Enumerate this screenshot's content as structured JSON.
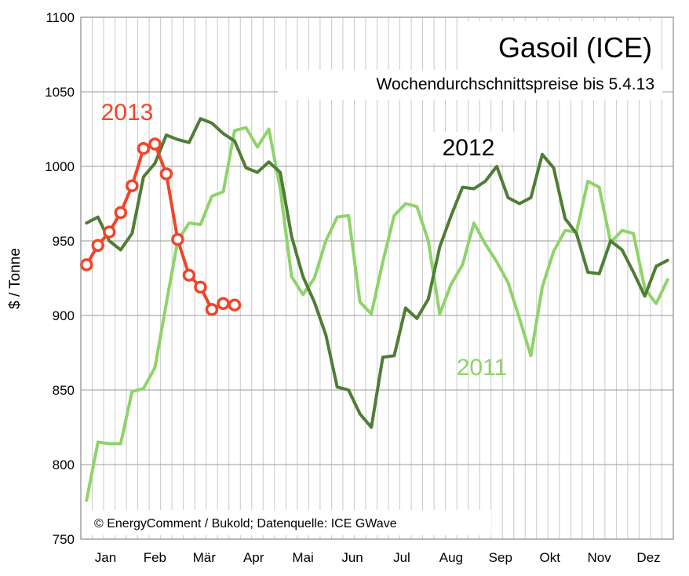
{
  "chart_data": {
    "type": "line",
    "title": "Gasoil (ICE)",
    "subtitle": "Wochendurchschnittspreise bis 5.4.13",
    "ylabel": "$ / Tonne",
    "xlabel": "",
    "ylim": [
      750,
      1100
    ],
    "yticks": [
      750,
      800,
      850,
      900,
      950,
      1000,
      1050,
      1100
    ],
    "categories": [
      "Jan",
      "Feb",
      "Mär",
      "Apr",
      "Mai",
      "Jun",
      "Jul",
      "Aug",
      "Sep",
      "Okt",
      "Nov",
      "Dez"
    ],
    "x_unit": "week of year",
    "grid": true,
    "credit": "© EnergyComment / Bukold; Datenquelle: ICE GWave",
    "series": [
      {
        "name": "2011",
        "color": "#8fd36a",
        "x": [
          1,
          2,
          3,
          4,
          5,
          6,
          7,
          8,
          9,
          10,
          11,
          12,
          13,
          14,
          15,
          16,
          17,
          18,
          19,
          20,
          21,
          22,
          23,
          24,
          25,
          26,
          27,
          28,
          29,
          30,
          31,
          32,
          33,
          34,
          35,
          36,
          37,
          38,
          39,
          40,
          41,
          42,
          43,
          44,
          45,
          46,
          47,
          48,
          49,
          50,
          51,
          52
        ],
        "values": [
          776,
          815,
          814,
          814,
          849,
          851,
          865,
          908,
          950,
          962,
          961,
          980,
          983,
          1024,
          1026,
          1013,
          1025,
          985,
          926,
          914,
          925,
          950,
          966,
          967,
          909,
          901,
          936,
          967,
          975,
          973,
          950,
          901,
          921,
          934,
          962,
          948,
          936,
          922,
          898,
          873,
          919,
          943,
          957,
          956,
          990,
          986,
          949,
          957,
          955,
          918,
          908,
          924
        ]
      },
      {
        "name": "2012",
        "color": "#4f7d35",
        "x": [
          1,
          2,
          3,
          4,
          5,
          6,
          7,
          8,
          9,
          10,
          11,
          12,
          13,
          14,
          15,
          16,
          17,
          18,
          19,
          20,
          21,
          22,
          23,
          24,
          25,
          26,
          27,
          28,
          29,
          30,
          31,
          32,
          33,
          34,
          35,
          36,
          37,
          38,
          39,
          40,
          41,
          42,
          43,
          44,
          45,
          46,
          47,
          48,
          49,
          50,
          51,
          52
        ],
        "values": [
          962,
          966,
          950,
          944,
          955,
          993,
          1002,
          1021,
          1018,
          1016,
          1032,
          1029,
          1022,
          1017,
          999,
          996,
          1003,
          996,
          953,
          926,
          909,
          887,
          852,
          850,
          834,
          825,
          872,
          873,
          905,
          898,
          911,
          946,
          967,
          986,
          985,
          990,
          1000,
          979,
          975,
          979,
          1008,
          999,
          965,
          955,
          929,
          928,
          950,
          944,
          929,
          913,
          933,
          937
        ]
      },
      {
        "name": "2013",
        "color": "#f0452a",
        "x": [
          1,
          2,
          3,
          4,
          5,
          6,
          7,
          8,
          9,
          10,
          11,
          12,
          13,
          14
        ],
        "values": [
          934,
          947,
          956,
          969,
          987,
          1012,
          1015,
          995,
          951,
          927,
          919,
          904,
          908,
          907
        ]
      }
    ]
  }
}
